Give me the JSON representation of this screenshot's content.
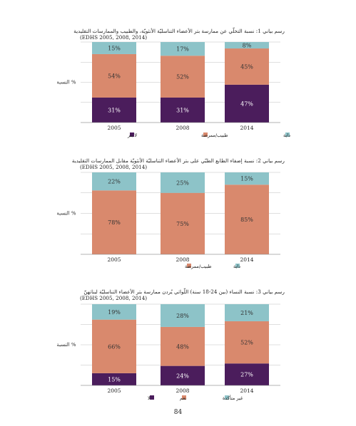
{
  "colors": {
    "purple": "#4b1d5c",
    "salmon": "#d9896d",
    "teal": "#8dc3c8",
    "grid": "#bfbfbf"
  },
  "page_number": "84",
  "chart_data": [
    {
      "type": "bar",
      "stacked": true,
      "title": "رسم بياني 1: نسبة التخلّي عن ممارسة بتر الأعضاء التناسليّة الأنثويّة، والطبيب والممارسات التقليدية",
      "subtitle": "(EDHS 2005, 2008, 2014)",
      "ylabel": "النسبة %",
      "categories": [
        "2005",
        "2008",
        "2014"
      ],
      "ylim": [
        0,
        100
      ],
      "grid": true,
      "legend_position": "bottom",
      "series": [
        {
          "name": "لا بتر",
          "color": "#4b1d5c",
          "values": [
            31,
            31,
            47
          ],
          "labels": [
            "31%",
            "31%",
            "47%"
          ]
        },
        {
          "name": "طبيب/ممرضة",
          "color": "#d9896d",
          "values": [
            54,
            52,
            45
          ],
          "labels": [
            "54%",
            "52%",
            "45%"
          ]
        },
        {
          "name": "داية",
          "color": "#8dc3c8",
          "values": [
            15,
            17,
            8
          ],
          "labels": [
            "15%",
            "17%",
            "8%"
          ]
        }
      ]
    },
    {
      "type": "bar",
      "stacked": true,
      "title": "رسم بياني 2: نسبة إضفاء الطابع الطبّي على بتر الأعضاء التناسليّة الأنثويّة مقابل الممارسات التقليدية",
      "subtitle": "(EDHS 2005, 2008, 2014)",
      "ylabel": "النسبة %",
      "categories": [
        "2005",
        "2008",
        "2014"
      ],
      "ylim": [
        0,
        100
      ],
      "grid": true,
      "legend_position": "bottom",
      "series": [
        {
          "name": "طبيب/ممرضة",
          "color": "#d9896d",
          "values": [
            78,
            75,
            85
          ],
          "labels": [
            "78%",
            "75%",
            "85%"
          ]
        },
        {
          "name": "داية",
          "color": "#8dc3c8",
          "values": [
            22,
            25,
            15
          ],
          "labels": [
            "22%",
            "25%",
            "15%"
          ]
        }
      ]
    },
    {
      "type": "bar",
      "stacked": true,
      "title": "رسم بياني 3: نسبة النساء (بين 24-18 سنة) اللّواتي يُردن ممارسة بتر الأعضاء التناسليّة لبناتهنّ",
      "subtitle": "(EDHS 2005, 2008, 2014)",
      "ylabel": "النسبة %",
      "categories": [
        "2005",
        "2008",
        "2014"
      ],
      "ylim": [
        0,
        100
      ],
      "grid": true,
      "legend_position": "bottom",
      "series": [
        {
          "name": "لا",
          "color": "#4b1d5c",
          "values": [
            15,
            24,
            27
          ],
          "labels": [
            "15%",
            "24%",
            "27%"
          ]
        },
        {
          "name": "نعم",
          "color": "#d9896d",
          "values": [
            66,
            48,
            52
          ],
          "labels": [
            "66%",
            "48%",
            "52%"
          ]
        },
        {
          "name": "غير متأكدة",
          "color": "#8dc3c8",
          "values": [
            19,
            28,
            21
          ],
          "labels": [
            "19%",
            "28%",
            "21%"
          ]
        }
      ]
    }
  ]
}
